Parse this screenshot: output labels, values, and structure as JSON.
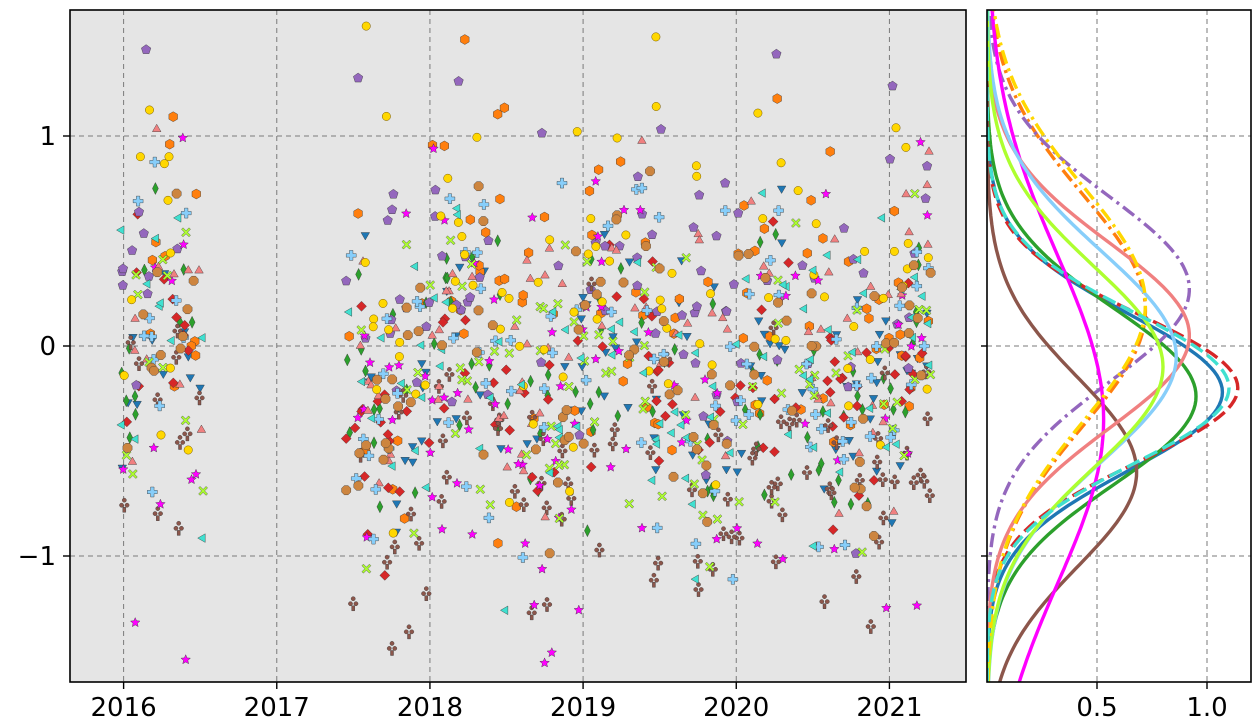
{
  "chart_data": [
    {
      "type": "scatter",
      "title": "",
      "xlabel": "",
      "ylabel": "",
      "xlim": [
        2015.65,
        2021.5
      ],
      "ylim": [
        -1.6,
        1.6
      ],
      "xticks": [
        {
          "value": 2016,
          "label": "2016"
        },
        {
          "value": 2017,
          "label": "2017"
        },
        {
          "value": 2018,
          "label": "2018"
        },
        {
          "value": 2019,
          "label": "2019"
        },
        {
          "value": 2020,
          "label": "2020"
        },
        {
          "value": 2021,
          "label": "2021"
        }
      ],
      "yticks": [
        {
          "value": 1,
          "label": "1"
        },
        {
          "value": 0,
          "label": "0"
        },
        {
          "value": -1,
          "label": "−1"
        }
      ],
      "grid": true,
      "background": "#e5e5e5",
      "legend": "none",
      "series": [
        {
          "color": "#1f77b4",
          "marker": "triangle-down",
          "center": -0.15,
          "spread": 0.33
        },
        {
          "color": "#ff7f0e",
          "marker": "hexagon",
          "center": 0.15,
          "spread": 0.45
        },
        {
          "color": "#2ca02c",
          "marker": "thin-diamond",
          "center": -0.2,
          "spread": 0.3
        },
        {
          "color": "#d62728",
          "marker": "diamond",
          "center": -0.15,
          "spread": 0.28
        },
        {
          "color": "#9467bd",
          "marker": "pentagon",
          "center": 0.3,
          "spread": 0.4
        },
        {
          "color": "#8c564b",
          "marker": "club",
          "center": -0.6,
          "spread": 0.35
        },
        {
          "color": "#ff00ff",
          "marker": "star",
          "center": -0.4,
          "spread": 0.55
        },
        {
          "color": "#f08080",
          "marker": "triangle-up",
          "center": 0.05,
          "spread": 0.4
        },
        {
          "color": "#87cefa",
          "marker": "plus",
          "center": -0.1,
          "spread": 0.4
        },
        {
          "color": "#adff2f",
          "marker": "x",
          "center": -0.2,
          "spread": 0.38
        },
        {
          "color": "#ffd700",
          "marker": "circle",
          "center": 0.25,
          "spread": 0.48
        },
        {
          "color": "#40e0d0",
          "marker": "triangle-left",
          "center": -0.1,
          "spread": 0.33
        },
        {
          "color": "#cd853f",
          "marker": "octagon",
          "center": -0.1,
          "spread": 0.3
        }
      ],
      "time_segments": [
        {
          "start": 2015.98,
          "end": 2016.52,
          "density": 0.5
        },
        {
          "start": 2017.45,
          "end": 2021.0,
          "density": 1.0
        },
        {
          "start": 2021.0,
          "end": 2021.27,
          "density": 0.3
        }
      ]
    },
    {
      "type": "line",
      "title": "",
      "xlabel": "",
      "ylabel": "",
      "xlim": [
        0,
        1.2
      ],
      "ylim": [
        -1.6,
        1.6
      ],
      "xticks": [
        {
          "value": 0.5,
          "label": "0.5"
        },
        {
          "value": 1.0,
          "label": "1.0"
        }
      ],
      "grid": true,
      "legend": "none",
      "series": [
        {
          "color": "#1f77b4",
          "dash": "solid",
          "values": [
            {
              "x": 1.07,
              "y": -0.22
            }
          ],
          "sigma": 0.37
        },
        {
          "color": "#ff7f0e",
          "dash": "dashdot",
          "values": [
            {
              "x": 0.72,
              "y": 0.17
            }
          ],
          "sigma": 0.55
        },
        {
          "color": "#2ca02c",
          "dash": "solid",
          "values": [
            {
              "x": 0.95,
              "y": -0.24
            }
          ],
          "sigma": 0.42
        },
        {
          "color": "#d62728",
          "dash": "dashed",
          "values": [
            {
              "x": 1.14,
              "y": -0.2
            }
          ],
          "sigma": 0.35
        },
        {
          "color": "#9467bd",
          "dash": "dashdot",
          "values": [
            {
              "x": 0.92,
              "y": 0.27
            }
          ],
          "sigma": 0.44
        },
        {
          "color": "#8c564b",
          "dash": "solid",
          "values": [
            {
              "x": 0.68,
              "y": -0.6
            }
          ],
          "sigma": 0.45
        },
        {
          "color": "#ff00ff",
          "dash": "solid",
          "values": [
            {
              "x": 0.53,
              "y": -0.35
            }
          ],
          "sigma": 0.78
        },
        {
          "color": "#f08080",
          "dash": "solid",
          "values": [
            {
              "x": 0.92,
              "y": 0.05
            }
          ],
          "sigma": 0.44
        },
        {
          "color": "#87cefa",
          "dash": "solid",
          "values": [
            {
              "x": 0.86,
              "y": -0.05
            }
          ],
          "sigma": 0.5
        },
        {
          "color": "#adff2f",
          "dash": "solid",
          "values": [
            {
              "x": 0.8,
              "y": -0.1
            }
          ],
          "sigma": 0.48
        },
        {
          "color": "#ffd700",
          "dash": "dashdot",
          "values": [
            {
              "x": 0.72,
              "y": 0.2
            }
          ],
          "sigma": 0.56
        },
        {
          "color": "#40e0d0",
          "dash": "dashed",
          "values": [
            {
              "x": 1.1,
              "y": -0.2
            }
          ],
          "sigma": 0.36
        }
      ]
    }
  ]
}
